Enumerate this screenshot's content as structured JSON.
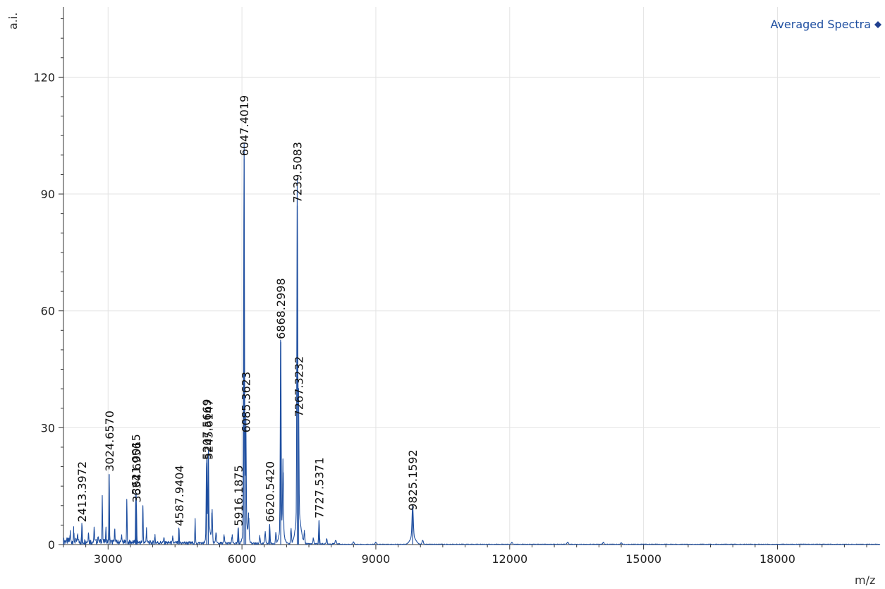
{
  "chart_data": {
    "type": "line",
    "legend": {
      "label": "Averaged Spectra",
      "position": "top-right"
    },
    "xlabel": "m/z",
    "ylabel": "a.i.",
    "xlim": [
      2000,
      20300
    ],
    "ylim": [
      0,
      138
    ],
    "x_ticks": [
      3000,
      6000,
      9000,
      12000,
      15000,
      18000
    ],
    "y_ticks": [
      0,
      30,
      60,
      90,
      120
    ],
    "grid": true,
    "line_color": "#1f4fa0",
    "peaks": [
      {
        "x": 2413.3972,
        "y": 5,
        "label": "2413.3972"
      },
      {
        "x": 3024.657,
        "y": 18,
        "label": "3024.6570"
      },
      {
        "x": 3621.0015,
        "y": 12,
        "label": "3621.0015"
      },
      {
        "x": 3634.6956,
        "y": 10,
        "label": "3634.6956"
      },
      {
        "x": 4587.9404,
        "y": 4,
        "label": "4587.9404"
      },
      {
        "x": 5207.5669,
        "y": 21,
        "label": "5207.5669"
      },
      {
        "x": 5245.6147,
        "y": 21,
        "label": "5245.6147"
      },
      {
        "x": 5916.1875,
        "y": 4,
        "label": "5916.1875"
      },
      {
        "x": 6047.4019,
        "y": 99,
        "label": "6047.4019"
      },
      {
        "x": 6085.3623,
        "y": 28,
        "label": "6085.3623"
      },
      {
        "x": 6620.542,
        "y": 5,
        "label": "6620.5420"
      },
      {
        "x": 6868.2998,
        "y": 52,
        "label": "6868.2998"
      },
      {
        "x": 7239.5083,
        "y": 87,
        "label": "7239.5083"
      },
      {
        "x": 7267.3232,
        "y": 32,
        "label": "7267.3232"
      },
      {
        "x": 7727.5371,
        "y": 6,
        "label": "7727.5371"
      },
      {
        "x": 9825.1592,
        "y": 8,
        "label": "9825.1592"
      }
    ],
    "minor_peaks": [
      {
        "x": 2150,
        "y": 2.5
      },
      {
        "x": 2230,
        "y": 3
      },
      {
        "x": 2320,
        "y": 2
      },
      {
        "x": 2560,
        "y": 3
      },
      {
        "x": 2690,
        "y": 4
      },
      {
        "x": 2780,
        "y": 2
      },
      {
        "x": 2870,
        "y": 12
      },
      {
        "x": 2950,
        "y": 4
      },
      {
        "x": 3150,
        "y": 4
      },
      {
        "x": 3300,
        "y": 2
      },
      {
        "x": 3420,
        "y": 11
      },
      {
        "x": 3780,
        "y": 10
      },
      {
        "x": 3860,
        "y": 4
      },
      {
        "x": 4050,
        "y": 2
      },
      {
        "x": 4250,
        "y": 1.5
      },
      {
        "x": 4450,
        "y": 1.5
      },
      {
        "x": 4950,
        "y": 6
      },
      {
        "x": 5330,
        "y": 8
      },
      {
        "x": 5420,
        "y": 3
      },
      {
        "x": 5600,
        "y": 2
      },
      {
        "x": 5780,
        "y": 2
      },
      {
        "x": 6150,
        "y": 6
      },
      {
        "x": 6400,
        "y": 2
      },
      {
        "x": 6520,
        "y": 3
      },
      {
        "x": 6760,
        "y": 3
      },
      {
        "x": 6920,
        "y": 18
      },
      {
        "x": 7100,
        "y": 4
      },
      {
        "x": 7400,
        "y": 3
      },
      {
        "x": 7600,
        "y": 1.5
      },
      {
        "x": 7900,
        "y": 1.5
      },
      {
        "x": 8100,
        "y": 1
      },
      {
        "x": 8500,
        "y": 0.6
      },
      {
        "x": 9000,
        "y": 0.5
      },
      {
        "x": 10050,
        "y": 1
      },
      {
        "x": 12050,
        "y": 0.5
      },
      {
        "x": 13300,
        "y": 0.6
      },
      {
        "x": 14100,
        "y": 0.5
      },
      {
        "x": 14500,
        "y": 0.4
      }
    ]
  }
}
